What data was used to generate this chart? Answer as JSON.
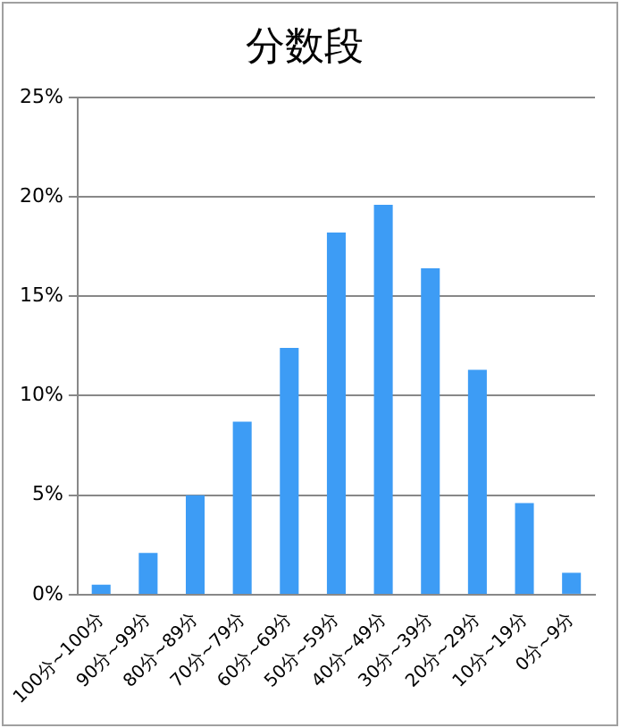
{
  "chart_data": {
    "type": "bar",
    "title": "分数段",
    "categories": [
      "100分~100分",
      "90分~99分",
      "80分~89分",
      "70分~79分",
      "60分~69分",
      "50分~59分",
      "40分~49分",
      "30分~39分",
      "20分~29分",
      "10分~19分",
      "0分~9分"
    ],
    "values": [
      0.5,
      2.1,
      5.0,
      8.7,
      12.4,
      18.2,
      19.6,
      16.4,
      11.3,
      4.6,
      1.1
    ],
    "color": "#3d9cf5",
    "ylim": [
      0,
      25
    ],
    "yticks": [
      {
        "value": 0,
        "label": "0%"
      },
      {
        "value": 5,
        "label": "5%"
      },
      {
        "value": 10,
        "label": "10%"
      },
      {
        "value": 15,
        "label": "15%"
      },
      {
        "value": 20,
        "label": "20%"
      },
      {
        "value": 25,
        "label": "25%"
      }
    ],
    "grid": "y"
  }
}
